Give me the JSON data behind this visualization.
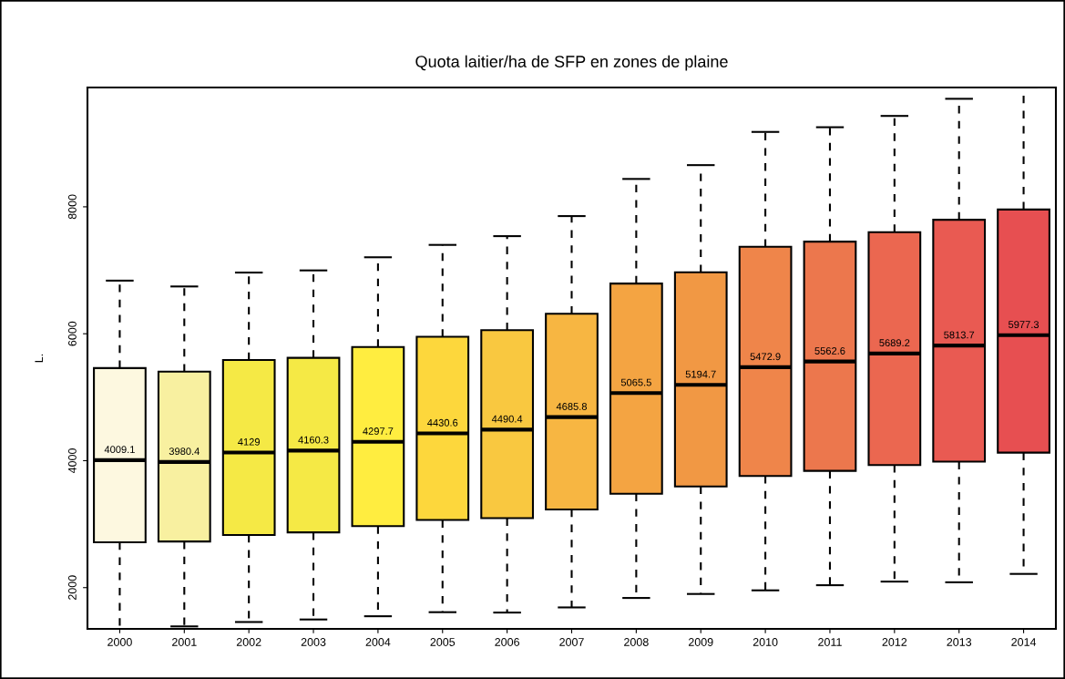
{
  "chart_data": {
    "type": "box",
    "title": "Quota laitier/ha de SFP en zones de plaine",
    "ylabel": "L.",
    "categories": [
      "2000",
      "2001",
      "2002",
      "2003",
      "2004",
      "2005",
      "2006",
      "2007",
      "2008",
      "2009",
      "2010",
      "2011",
      "2012",
      "2013",
      "2014"
    ],
    "boxes": [
      {
        "low": 1343,
        "q1": 2715,
        "median": 4009.1,
        "q3": 5459,
        "high": 6837
      },
      {
        "low": 1389,
        "q1": 2727,
        "median": 3980.4,
        "q3": 5402,
        "high": 6745
      },
      {
        "low": 1458,
        "q1": 2830,
        "median": 4129,
        "q3": 5586,
        "high": 6964
      },
      {
        "low": 1498,
        "q1": 2870,
        "median": 4160.3,
        "q3": 5620,
        "high": 6998
      },
      {
        "low": 1549,
        "q1": 2968,
        "median": 4297.7,
        "q3": 5792,
        "high": 7205
      },
      {
        "low": 1613,
        "q1": 3065,
        "median": 4430.6,
        "q3": 5953,
        "high": 7400
      },
      {
        "low": 1607,
        "q1": 3094,
        "median": 4490.4,
        "q3": 6057,
        "high": 7538
      },
      {
        "low": 1688,
        "q1": 3232,
        "median": 4685.8,
        "q3": 6315,
        "high": 7854
      },
      {
        "low": 1837,
        "q1": 3479,
        "median": 5065.5,
        "q3": 6791,
        "high": 8439
      },
      {
        "low": 1900,
        "q1": 3594,
        "median": 5194.7,
        "q3": 6969,
        "high": 8657
      },
      {
        "low": 1957,
        "q1": 3760,
        "median": 5472.9,
        "q3": 7371,
        "high": 9180
      },
      {
        "low": 2038,
        "q1": 3840,
        "median": 5562.6,
        "q3": 7451,
        "high": 9254
      },
      {
        "low": 2095,
        "q1": 3932,
        "median": 5689.2,
        "q3": 7601,
        "high": 9432
      },
      {
        "low": 2084,
        "q1": 3984,
        "median": 5813.7,
        "q3": 7796,
        "high": 9702
      },
      {
        "low": 2216,
        "q1": 4127,
        "median": 5977.3,
        "q3": 7957,
        "high": 9880
      }
    ],
    "colors": [
      "#fdf8e0",
      "#f8f0a0",
      "#f5e945",
      "#f5e945",
      "#ffed40",
      "#fdd73c",
      "#f9c840",
      "#f7b642",
      "#f4a442",
      "#f19844",
      "#ef854a",
      "#ec774d",
      "#eb6750",
      "#e95a52",
      "#e74f51"
    ],
    "ylim": [
      1350,
      9880
    ],
    "yticks": [
      2000,
      4000,
      6000,
      8000
    ],
    "grid": false,
    "value_labels": [
      "4009.1",
      "3980.4",
      "4129",
      "4160.3",
      "4297.7",
      "4430.6",
      "4490.4",
      "4685.8",
      "5065.5",
      "5194.7",
      "5472.9",
      "5562.6",
      "5689.2",
      "5813.7",
      "5977.3"
    ]
  }
}
